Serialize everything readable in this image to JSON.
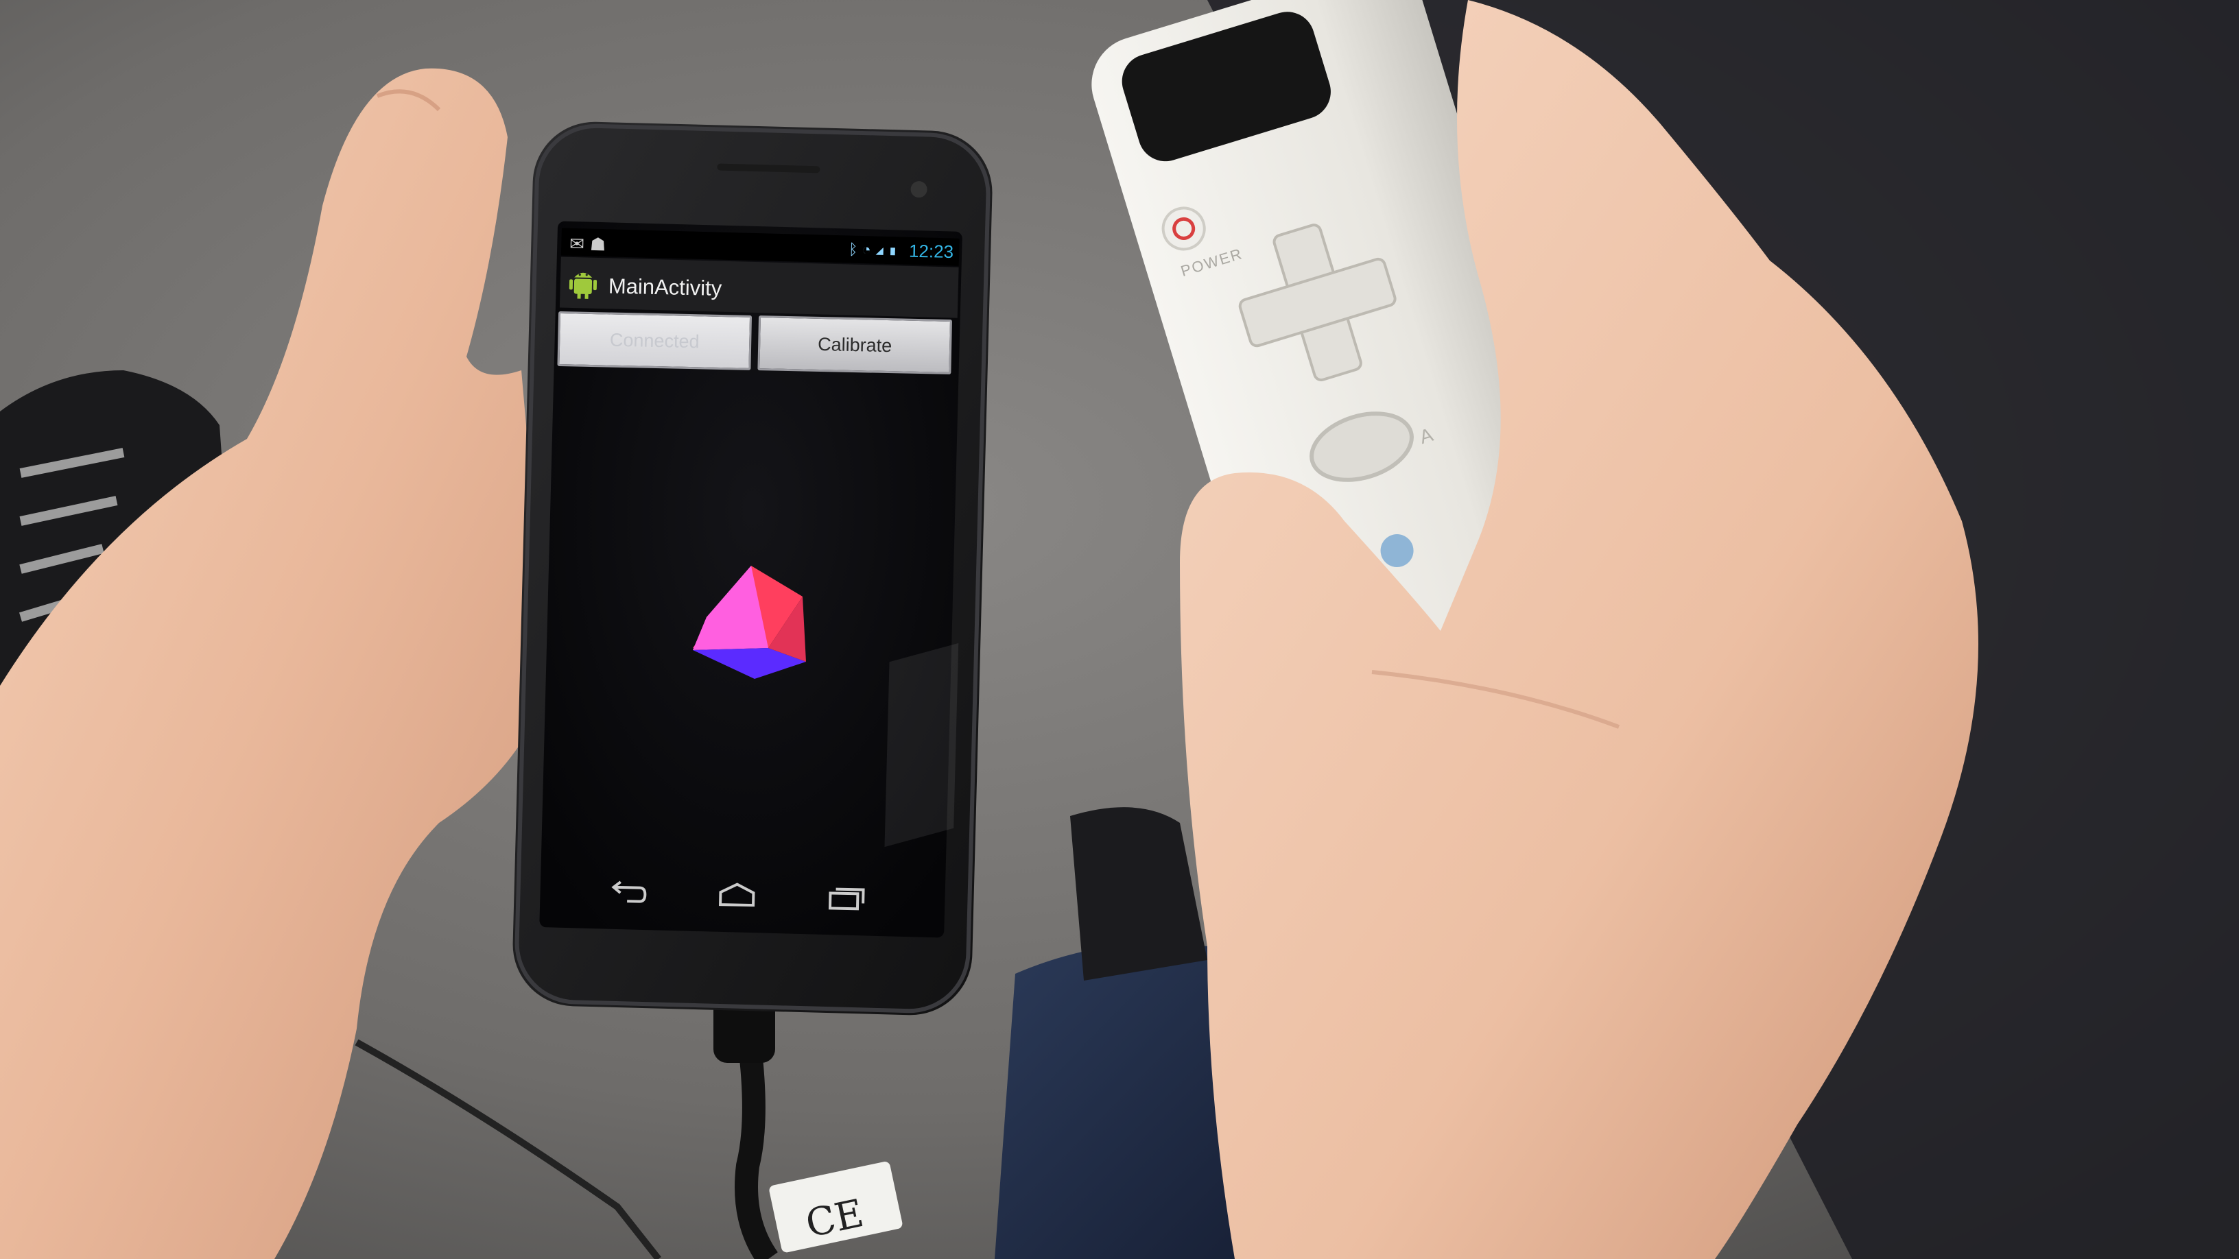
{
  "status_bar": {
    "notification_icons": [
      "gmail-icon",
      "android-debug-icon"
    ],
    "system_icons": [
      "bluetooth-icon",
      "wifi-icon",
      "signal-icon",
      "battery-charging-icon"
    ],
    "time": "12:23",
    "accent": "#33b5e5"
  },
  "action_bar": {
    "title": "MainActivity",
    "icon": "android-robot-icon"
  },
  "buttons": {
    "connected": "Connected",
    "calibrate": "Calibrate"
  },
  "navigation": [
    "back-icon",
    "home-icon",
    "recent-apps-icon"
  ],
  "cube": {
    "top_color": "#ff4fd8",
    "right_color": "#ff3f5e",
    "left_color": "#5b2bff"
  },
  "wiimote": {
    "power_label": "POWER",
    "a_label": "A"
  },
  "ce_label": "CE"
}
